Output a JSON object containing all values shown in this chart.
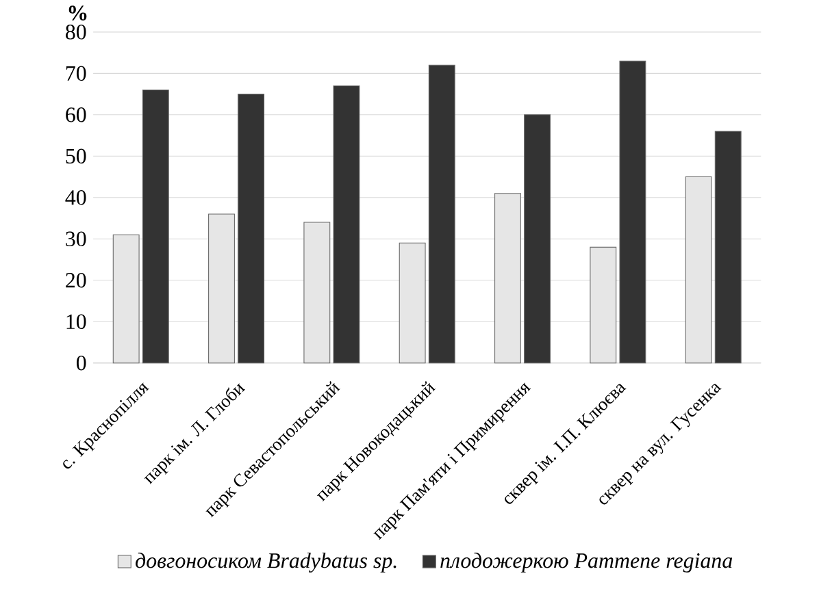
{
  "chart_data": {
    "type": "bar",
    "ylabel": "%",
    "categories": [
      "с. Краснопілля",
      "парк ім. Л. Глоби",
      "парк Севастопольський",
      "парк Новокодацький",
      "парк Пам'яти і Примирення",
      "сквер ім. І.П. Клюєва",
      "сквер на вул. Гусенка"
    ],
    "series": [
      {
        "name": "*довгоносиком Bradybatus sp.*",
        "color": "#e6e6e6",
        "values": [
          31,
          36,
          34,
          29,
          41,
          28,
          45
        ]
      },
      {
        "name": "*плодожеркою Pammene regiana*",
        "color": "#333333",
        "values": [
          66,
          65,
          67,
          72,
          60,
          73,
          56
        ]
      }
    ],
    "ylim": [
      0,
      80
    ],
    "yticks": [
      0,
      10,
      20,
      30,
      40,
      50,
      60,
      70,
      80
    ],
    "grid": "y",
    "legend": "bottom"
  }
}
